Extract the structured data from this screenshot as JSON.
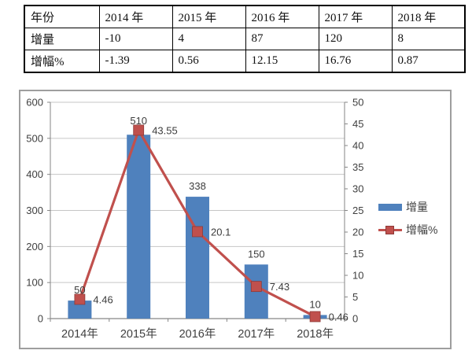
{
  "table": {
    "columns": [
      "年份",
      "2014 年",
      "2015 年",
      "2016 年",
      "2017 年",
      "2018 年"
    ],
    "rows": [
      {
        "label": "增量",
        "values": [
          "-10",
          "4",
          "87",
          "120",
          "8"
        ]
      },
      {
        "label": "增幅%",
        "values": [
          "-1.39",
          "0.56",
          "12.15",
          "16.76",
          "0.87"
        ]
      }
    ]
  },
  "chart_data": {
    "type": "bar",
    "subtype": "bar-line-combo",
    "categories": [
      "2014年",
      "2015年",
      "2016年",
      "2017年",
      "2018年"
    ],
    "series": [
      {
        "name": "增量",
        "type": "bar",
        "axis": "left",
        "values": [
          50,
          510,
          338,
          150,
          10
        ],
        "color": "#4f81bd"
      },
      {
        "name": "增幅%",
        "type": "line",
        "axis": "right",
        "values": [
          4.46,
          43.55,
          20.1,
          7.43,
          0.46
        ],
        "color": "#c0504d",
        "marker": "square",
        "marker_border": "#8e3a37"
      }
    ],
    "left_axis": {
      "min": 0,
      "max": 600,
      "step": 100
    },
    "right_axis": {
      "min": 0,
      "max": 50,
      "step": 5
    },
    "grid": true,
    "data_labels": true,
    "legend_position": "right",
    "styles": {
      "grid_color": "#c6c6c6",
      "axis_color": "#868686",
      "label_color": "#3c3c3c",
      "tick_color": "#3f3f3f",
      "frame_border": "#9e9e9e",
      "background": "#ffffff"
    }
  }
}
